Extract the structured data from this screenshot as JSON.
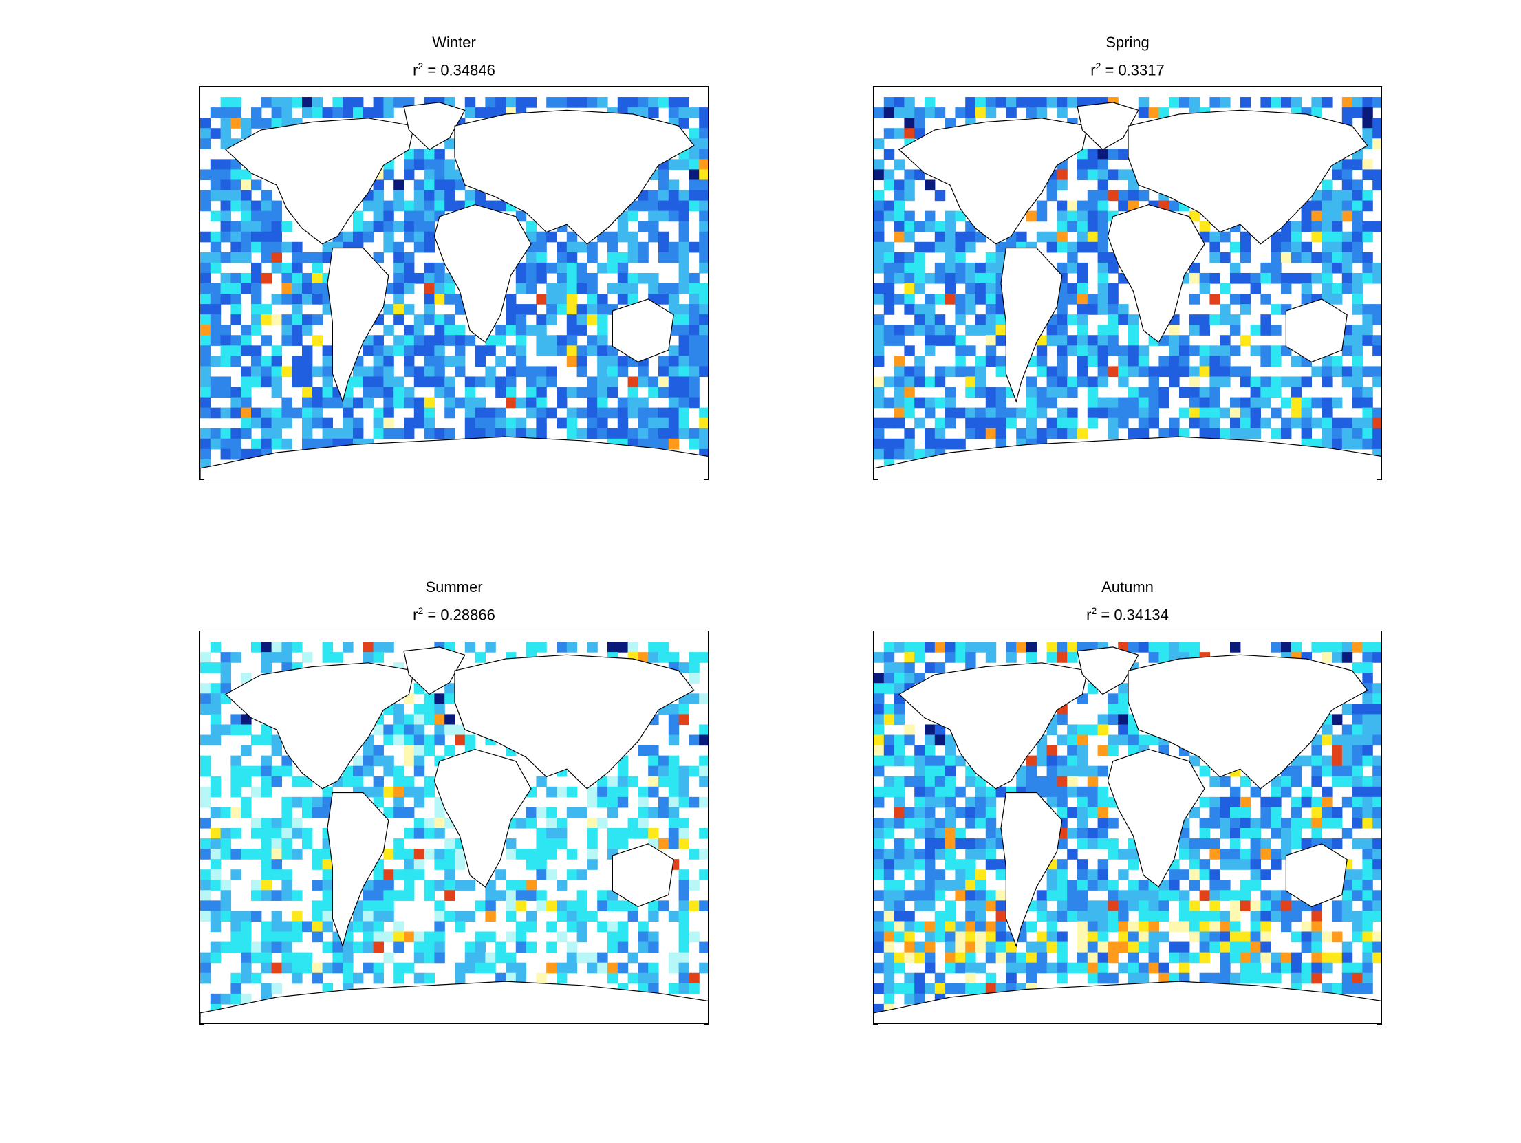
{
  "figure": {
    "panels": [
      {
        "id": "winter",
        "season": "Winter",
        "r2_prefix": "r",
        "r2_sup": "2",
        "r2_value": " = 0.34846",
        "palette": "cool",
        "seed": 11,
        "blank": 0.28,
        "warm": 0.03
      },
      {
        "id": "spring",
        "season": "Spring",
        "r2_prefix": "r",
        "r2_sup": "2",
        "r2_value": " = 0.3317",
        "palette": "cool",
        "seed": 23,
        "blank": 0.3,
        "warm": 0.05
      },
      {
        "id": "summer",
        "season": "Summer",
        "r2_prefix": "r",
        "r2_sup": "2",
        "r2_value": " = 0.28866",
        "palette": "light",
        "seed": 37,
        "blank": 0.42,
        "warm": 0.06
      },
      {
        "id": "autumn",
        "season": "Autumn",
        "r2_prefix": "r",
        "r2_sup": "2",
        "r2_value": " = 0.34134",
        "palette": "mixed",
        "seed": 51,
        "blank": 0.26,
        "warm": 0.12
      }
    ],
    "colors": {
      "navy": "#0a1a7a",
      "blue": "#1f5fe0",
      "mid_blue": "#2f86ea",
      "sky": "#3fb8f0",
      "cyan": "#2ee6f2",
      "pale_cyan": "#b8f7f7",
      "pale_yellow": "#fff8b0",
      "yellow": "#ffe81a",
      "orange": "#ff9a1a",
      "red": "#e2421a",
      "coast": "#000000"
    }
  }
}
